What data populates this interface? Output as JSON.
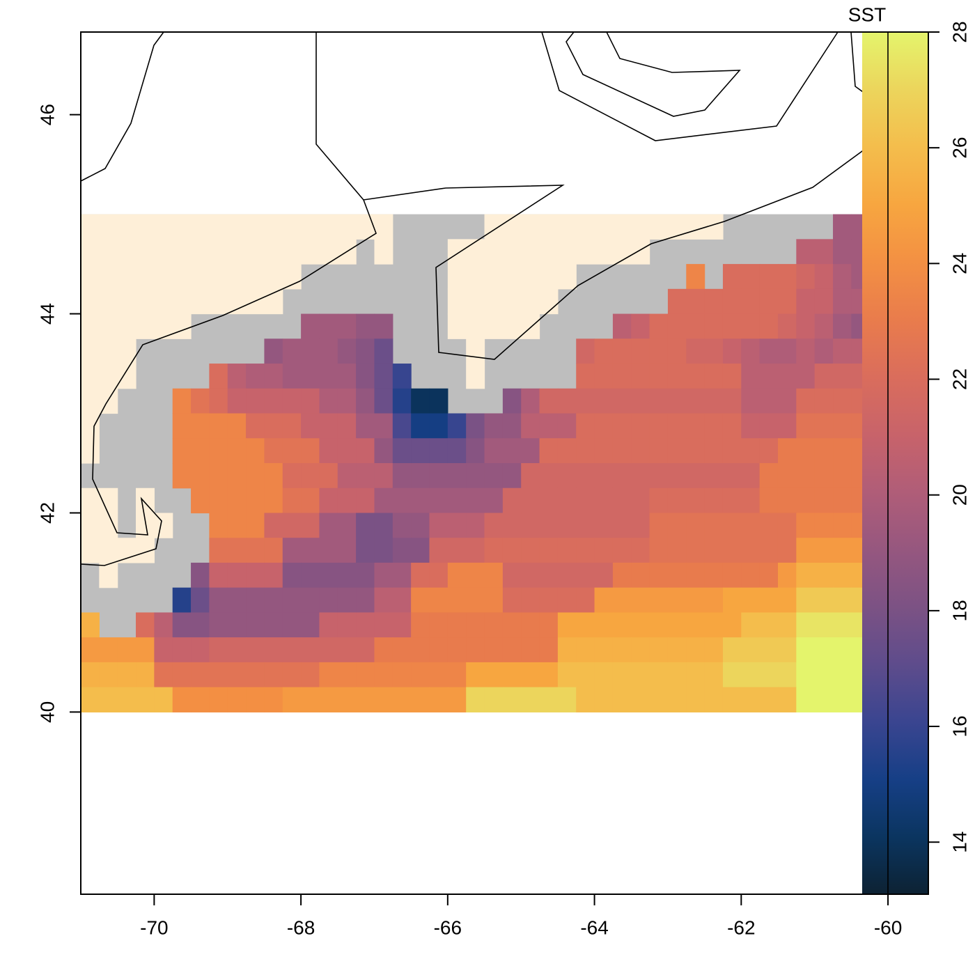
{
  "chart_data": {
    "type": "heatmap",
    "colorbar_title": "SST",
    "xlim": [
      -71,
      -59.45
    ],
    "ylim": [
      38.17,
      46.83
    ],
    "xticks": [
      -70,
      -68,
      -66,
      -64,
      -62,
      -60
    ],
    "yticks": [
      40,
      42,
      44,
      46
    ],
    "grid_x": [
      -71,
      -60
    ],
    "grid_y": [
      45,
      40
    ],
    "clim": [
      13.1,
      28
    ],
    "cticks": [
      14,
      16,
      18,
      20,
      22,
      24,
      26,
      28
    ],
    "colormap": [
      "#0d2233",
      "#0b3560",
      "#163f86",
      "#3a4590",
      "#5e4c8c",
      "#7c5284",
      "#96577f",
      "#b05d78",
      "#c8636a",
      "#da6d5c",
      "#e97c4c",
      "#f39043",
      "#f7a640",
      "#f4bd4c",
      "#ecd55c",
      "#e4f46c"
    ],
    "na_color": "#bebebe",
    "values": [
      [
        null,
        null,
        null,
        null,
        null,
        null,
        null,
        null,
        null,
        null,
        null,
        null,
        null,
        null,
        null,
        null,
        null,
        null,
        null,
        null,
        null,
        null,
        null,
        null,
        null,
        null,
        null,
        null,
        null,
        null,
        null,
        null,
        null,
        null,
        null,
        null,
        null,
        null,
        null,
        null,
        null,
        19.5,
        19.5,
        19.5
      ],
      [
        null,
        null,
        null,
        null,
        null,
        null,
        null,
        null,
        null,
        null,
        null,
        null,
        null,
        null,
        null,
        null,
        null,
        null,
        null,
        null,
        null,
        null,
        null,
        null,
        null,
        null,
        null,
        null,
        null,
        null,
        null,
        null,
        null,
        null,
        null,
        null,
        null,
        null,
        null,
        20.5,
        20.5,
        19.5,
        19.5,
        19.5
      ],
      [
        null,
        null,
        null,
        null,
        null,
        null,
        null,
        null,
        null,
        null,
        null,
        null,
        null,
        null,
        null,
        null,
        null,
        null,
        null,
        null,
        null,
        null,
        null,
        null,
        null,
        null,
        null,
        null,
        null,
        null,
        null,
        null,
        null,
        23.5,
        null,
        22,
        22,
        22,
        22,
        21.5,
        21,
        20,
        19.5,
        19.5
      ],
      [
        null,
        null,
        null,
        null,
        null,
        null,
        null,
        null,
        null,
        null,
        null,
        null,
        null,
        null,
        null,
        null,
        null,
        null,
        null,
        null,
        null,
        null,
        null,
        null,
        null,
        null,
        null,
        null,
        null,
        null,
        null,
        null,
        22,
        22,
        22,
        22,
        22,
        22,
        22,
        21,
        21,
        20,
        20,
        null
      ],
      [
        null,
        null,
        null,
        null,
        null,
        null,
        null,
        null,
        null,
        null,
        null,
        null,
        19.5,
        19.5,
        19.5,
        19,
        19,
        null,
        null,
        null,
        null,
        null,
        null,
        null,
        null,
        null,
        null,
        null,
        null,
        20.5,
        21,
        22,
        22,
        22,
        22,
        22,
        22,
        22,
        21.5,
        21,
        20.5,
        19.5,
        19,
        null
      ],
      [
        null,
        null,
        null,
        null,
        null,
        null,
        null,
        null,
        null,
        null,
        19,
        19.5,
        19.5,
        19.5,
        19,
        18.5,
        17.5,
        null,
        null,
        null,
        null,
        null,
        null,
        null,
        null,
        null,
        null,
        21.5,
        22,
        22,
        22,
        22,
        22,
        21.5,
        21.5,
        21,
        20.5,
        20,
        20,
        20.5,
        20,
        20.5,
        20.5,
        21
      ],
      [
        null,
        null,
        null,
        null,
        null,
        null,
        null,
        22,
        20.5,
        20,
        20,
        19.5,
        19.5,
        19.5,
        19.5,
        18.5,
        17.5,
        16,
        null,
        null,
        null,
        null,
        null,
        null,
        null,
        null,
        null,
        22,
        22,
        22,
        22,
        22,
        22,
        22,
        22,
        22,
        20.5,
        20.5,
        20.5,
        20.5,
        21.5,
        21.5,
        21.5,
        21.5
      ],
      [
        null,
        null,
        null,
        null,
        null,
        23.5,
        22.5,
        22,
        21,
        21,
        21,
        21,
        21,
        20,
        20,
        19,
        17.5,
        15.5,
        14,
        14,
        null,
        null,
        null,
        18.5,
        20,
        21.5,
        21.5,
        21.5,
        21.5,
        21.5,
        21.5,
        21.5,
        21.5,
        21.5,
        21.5,
        21.5,
        20.5,
        20.5,
        20.5,
        22,
        22,
        22,
        22,
        22
      ],
      [
        null,
        null,
        null,
        null,
        null,
        23.5,
        23.5,
        23.5,
        23.5,
        22,
        22,
        22,
        21,
        21,
        21,
        19.5,
        19.5,
        16.5,
        15,
        15,
        16,
        18,
        19,
        19,
        20.5,
        20.5,
        20.5,
        22,
        22,
        22,
        22,
        22,
        22,
        22,
        22,
        22,
        21,
        21,
        21,
        22.5,
        22.5,
        22.5,
        22.5,
        22.5
      ],
      [
        null,
        null,
        null,
        null,
        null,
        23.5,
        23.5,
        23.5,
        23.5,
        23.5,
        22.5,
        22.5,
        22.5,
        21,
        21,
        21,
        19,
        17.5,
        17.5,
        17.5,
        17.5,
        18.5,
        19.5,
        19.5,
        19.5,
        22,
        22,
        22,
        22,
        22,
        22,
        22,
        22,
        22,
        22,
        22,
        22,
        22,
        23,
        23,
        23,
        23,
        23,
        23
      ],
      [
        null,
        null,
        null,
        null,
        null,
        23.5,
        23.5,
        23.5,
        23.5,
        23.5,
        23.5,
        22,
        22,
        22,
        20.5,
        20.5,
        20.5,
        19,
        19,
        19,
        19,
        19,
        19,
        19,
        21.5,
        21.5,
        21.5,
        21.5,
        21.5,
        21.5,
        21.5,
        21.5,
        21.5,
        21.5,
        21.5,
        21.5,
        21.5,
        23,
        23,
        23,
        23,
        23,
        23,
        23
      ],
      [
        null,
        null,
        null,
        null,
        null,
        null,
        23.5,
        23.5,
        23.5,
        23.5,
        23.5,
        22.5,
        22.5,
        21,
        21,
        21,
        19.5,
        19.5,
        19.5,
        19.5,
        19.5,
        19.5,
        19.5,
        21.5,
        21.5,
        21.5,
        21.5,
        21.5,
        21.5,
        21.5,
        21.5,
        22,
        22,
        22,
        22,
        22,
        22,
        23,
        23,
        23,
        23,
        23,
        23,
        23
      ],
      [
        null,
        null,
        null,
        null,
        null,
        null,
        null,
        23.5,
        23.5,
        23.5,
        21.5,
        21.5,
        21.5,
        19.5,
        19.5,
        18,
        18,
        19,
        19,
        20.5,
        20.5,
        20.5,
        21.5,
        21.5,
        21.5,
        21.5,
        21.5,
        21.5,
        21.5,
        21.5,
        21.5,
        22.5,
        22.5,
        22.5,
        22.5,
        22.5,
        22.5,
        22.5,
        22.5,
        23.5,
        23.5,
        23.5,
        23.5,
        23.5
      ],
      [
        null,
        null,
        null,
        null,
        null,
        null,
        null,
        22.5,
        22.5,
        22.5,
        22.5,
        19.5,
        19.5,
        19.5,
        19.5,
        18,
        18,
        18.5,
        18.5,
        21.5,
        21.5,
        21.5,
        22,
        22,
        22,
        22,
        22,
        22,
        22,
        22,
        22,
        22.5,
        22.5,
        22.5,
        22.5,
        22.5,
        22.5,
        22.5,
        22.5,
        24.5,
        24.5,
        24.5,
        24.5,
        24.5
      ],
      [
        null,
        null,
        null,
        null,
        null,
        null,
        18.5,
        21,
        21,
        21,
        21,
        18.5,
        18.5,
        18.5,
        18.5,
        18.5,
        19.5,
        19.5,
        22,
        22,
        23.5,
        23.5,
        23.5,
        21.5,
        21.5,
        21.5,
        21.5,
        21.5,
        21.5,
        23,
        23,
        23,
        23,
        23,
        23,
        23,
        23,
        23,
        24.5,
        25.5,
        25.5,
        25.5,
        25.5,
        25.5
      ],
      [
        null,
        null,
        null,
        null,
        null,
        15.5,
        17.5,
        19,
        19,
        19,
        19,
        19,
        19,
        19,
        19,
        19,
        20.5,
        20.5,
        23.5,
        23.5,
        23.5,
        23.5,
        23.5,
        22,
        22,
        22,
        22,
        22,
        24.5,
        24.5,
        24.5,
        24.5,
        24.5,
        24.5,
        24.5,
        25,
        25,
        25,
        25,
        26.5,
        26.5,
        26.5,
        26.5,
        26.5
      ],
      [
        25.5,
        null,
        null,
        22,
        20.5,
        18.5,
        18.5,
        19,
        19,
        19,
        19,
        19,
        19,
        21,
        21,
        21,
        21,
        21,
        23,
        23,
        23,
        23,
        23,
        23,
        23,
        23,
        25,
        25,
        25,
        25,
        25,
        25,
        25,
        25,
        25,
        25,
        26,
        26,
        26,
        27.5,
        27.5,
        27.5,
        27.5,
        27.5
      ],
      [
        24.5,
        24.5,
        24.5,
        24.5,
        21,
        21,
        21,
        21.5,
        21.5,
        21.5,
        21.5,
        21.5,
        21.5,
        21.5,
        21.5,
        21.5,
        23,
        23,
        23,
        23,
        23,
        23,
        23,
        23,
        23,
        23,
        25.5,
        25.5,
        25.5,
        25.5,
        25.5,
        25.5,
        25.5,
        25.5,
        25.5,
        26.5,
        26.5,
        26.5,
        26.5,
        28,
        28,
        28,
        28,
        28
      ],
      [
        25.5,
        25.5,
        25.5,
        25.5,
        22.5,
        22.5,
        22.5,
        22.5,
        22.5,
        22.5,
        22.5,
        22.5,
        22.5,
        23.5,
        23.5,
        23.5,
        23.5,
        23.5,
        23.5,
        23.5,
        23.5,
        25,
        25,
        25,
        25,
        25,
        26,
        26,
        26,
        26,
        26,
        26,
        26,
        26,
        26,
        27,
        27,
        27,
        27,
        28,
        28,
        28,
        28,
        28
      ],
      [
        26,
        26,
        26,
        26,
        26,
        24,
        24,
        24,
        24,
        24,
        24,
        24.5,
        24.5,
        24.5,
        24.5,
        24.5,
        24.5,
        24.5,
        24.5,
        24.5,
        24.5,
        27,
        27,
        27,
        27,
        27,
        27,
        26,
        26,
        26,
        26,
        26,
        26,
        26,
        26,
        26,
        26,
        26,
        26,
        28,
        28,
        28,
        28,
        28
      ]
    ]
  }
}
